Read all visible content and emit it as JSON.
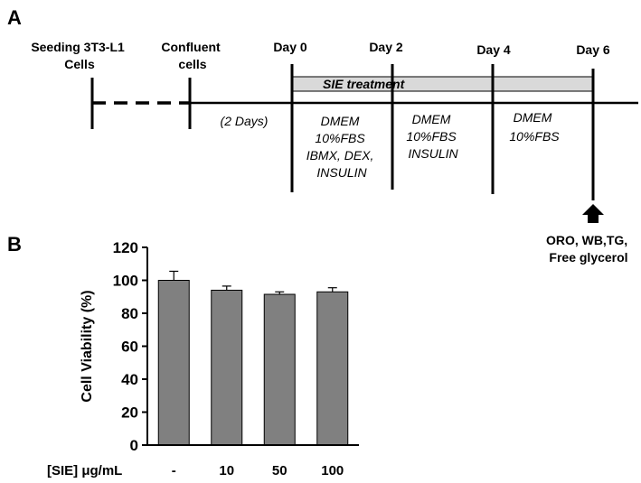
{
  "panel_a": {
    "letter": "A",
    "stages": [
      {
        "lines": [
          "Seeding 3T3-L1",
          "Cells"
        ]
      },
      {
        "lines": [
          "Confluent",
          "cells"
        ]
      },
      {
        "lines": [
          "Day 0"
        ]
      },
      {
        "lines": [
          "Day 2"
        ]
      },
      {
        "lines": [
          "Day 4"
        ]
      },
      {
        "lines": [
          "Day 6"
        ]
      }
    ],
    "treatment_label": "SIE treatment",
    "gap_label": "(2 Days)",
    "media": [
      {
        "lines": [
          "DMEM",
          "10%FBS",
          "IBMX, DEX,",
          "INSULIN"
        ]
      },
      {
        "lines": [
          "DMEM",
          "10%FBS",
          "INSULIN"
        ]
      },
      {
        "lines": [
          "DMEM",
          "10%FBS"
        ]
      }
    ],
    "assays": [
      "ORO, WB,TG,",
      "Free glycerol"
    ],
    "colors": {
      "treatment_bar": "#d9d9d9",
      "line": "#000000"
    }
  },
  "panel_b": {
    "letter": "B",
    "chart_data": {
      "type": "bar",
      "categories": [
        "-",
        "10",
        "50",
        "100"
      ],
      "values": [
        100,
        94,
        91.5,
        93
      ],
      "errors": [
        5.5,
        2.5,
        1.5,
        2.5
      ],
      "xlabel": "[SIE] μg/mL",
      "ylabel": "Cell Viability (%)",
      "ylim": [
        0,
        120
      ],
      "yticks": [
        0,
        20,
        40,
        60,
        80,
        100,
        120
      ],
      "grid": false,
      "bar_color": "#808080"
    }
  }
}
